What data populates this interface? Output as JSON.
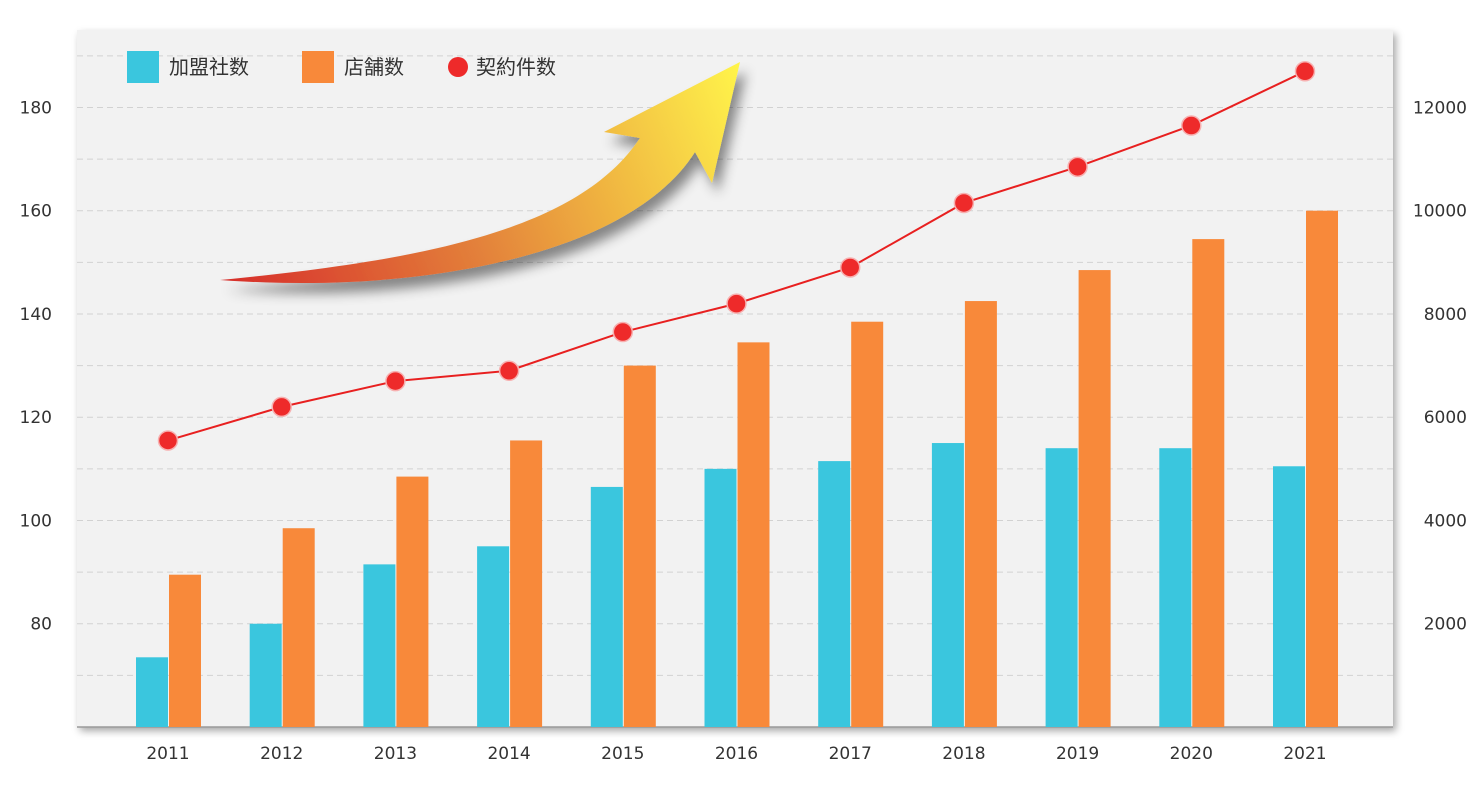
{
  "chart_data": {
    "type": "bar",
    "categories": [
      "2011",
      "2012",
      "2013",
      "2014",
      "2015",
      "2016",
      "2017",
      "2018",
      "2019",
      "2020",
      "2021"
    ],
    "series": [
      {
        "name": "加盟社数",
        "type": "bar",
        "axis": "left",
        "color": "#3ac6de",
        "values": [
          73.5,
          80,
          91.5,
          95,
          106.5,
          110,
          111.5,
          115,
          114,
          114,
          110.5
        ]
      },
      {
        "name": "店舗数",
        "type": "bar",
        "axis": "left",
        "color": "#f8893a",
        "values": [
          89.5,
          98.5,
          108.5,
          115.5,
          130,
          134.5,
          138.5,
          142.5,
          148.5,
          154.5,
          160
        ]
      },
      {
        "name": "契約件数",
        "type": "line",
        "axis": "right",
        "color": "#e82020",
        "values": [
          5550,
          6200,
          6700,
          6900,
          7650,
          8200,
          8900,
          10150,
          10850,
          11650,
          12700
        ]
      }
    ],
    "y_left": {
      "min": 60,
      "max": 195,
      "ticks": [
        80,
        100,
        120,
        140,
        160,
        180
      ]
    },
    "y_right": {
      "min": 0,
      "max": 13500,
      "ticks": [
        2000,
        4000,
        6000,
        8000,
        10000,
        12000
      ]
    },
    "grid": true,
    "legend_position": "top-left",
    "decoration": "rising arrow graphic"
  }
}
